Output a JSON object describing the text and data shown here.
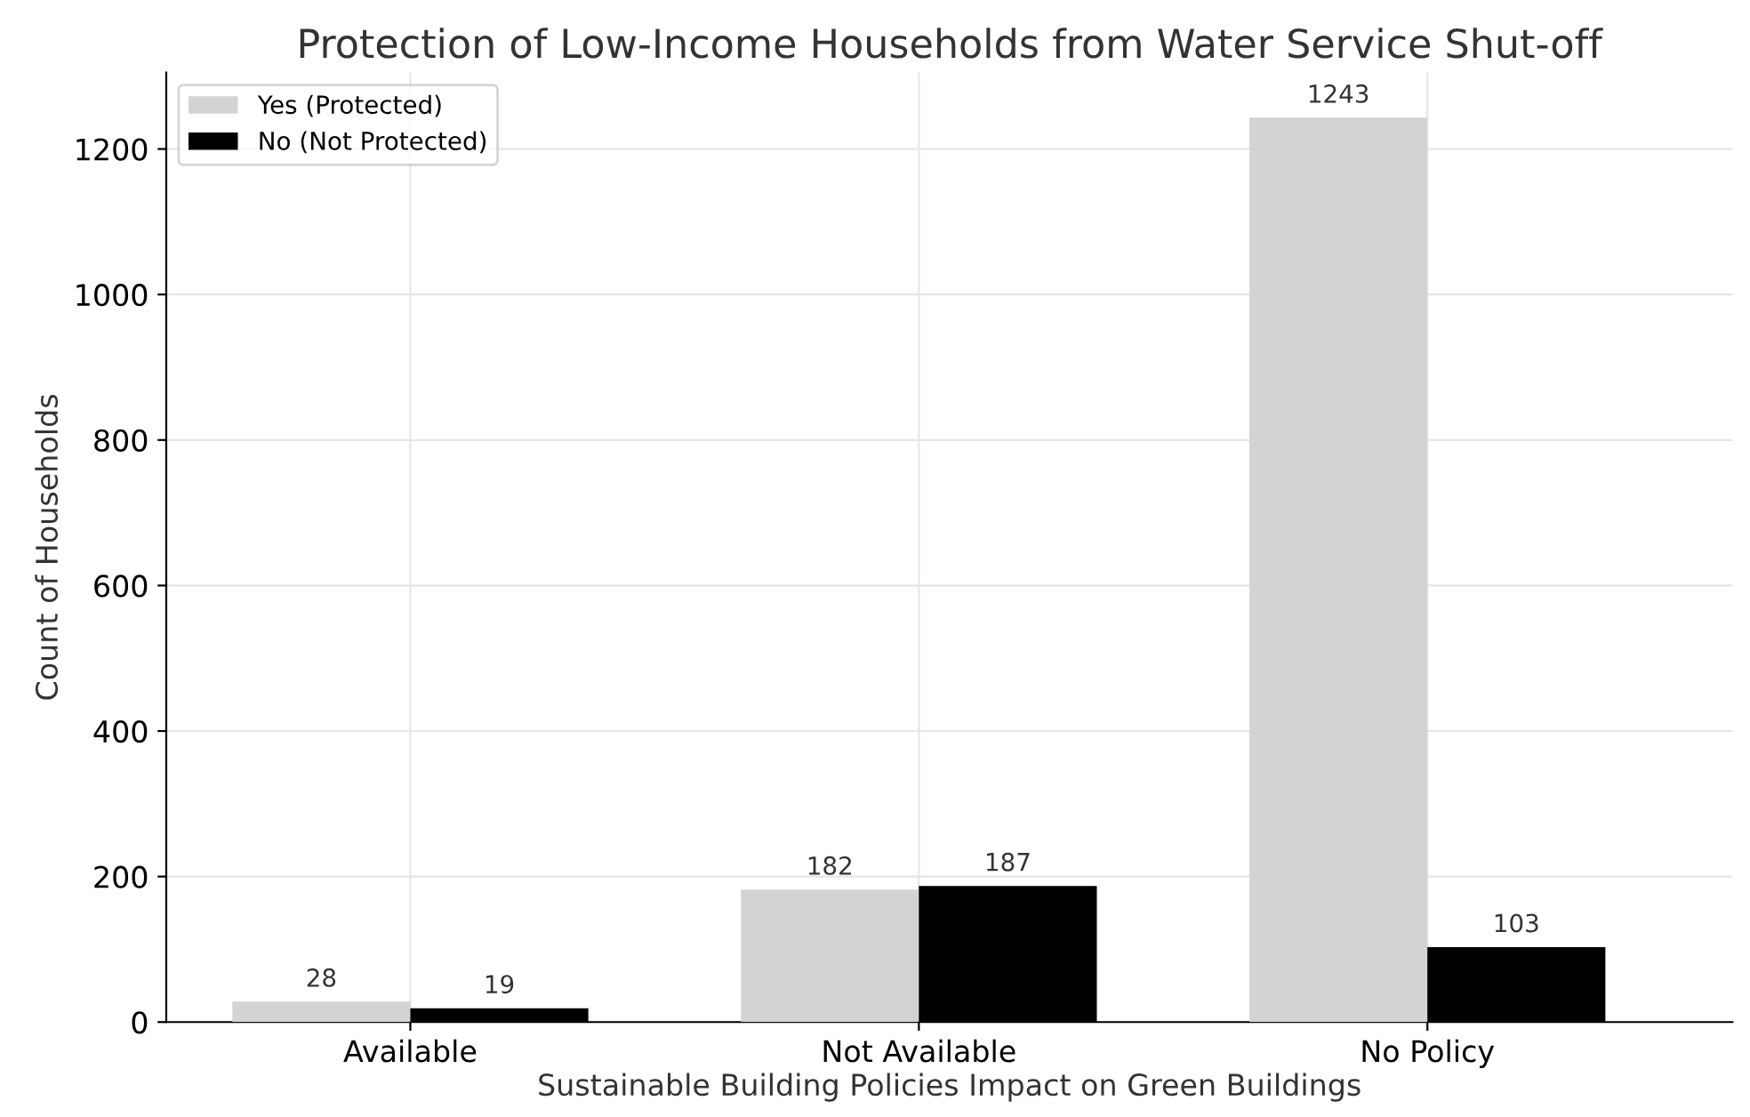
{
  "chart_data": {
    "type": "bar",
    "title": "Protection of Low-Income Households from Water Service Shut-off",
    "xlabel": "Sustainable Building Policies Impact on Green Buildings",
    "ylabel": "Count of Households",
    "categories": [
      "Available",
      "Not Available",
      "No Policy"
    ],
    "series": [
      {
        "name": "Yes (Protected)",
        "color": "#d3d3d3",
        "values": [
          28,
          182,
          1243
        ]
      },
      {
        "name": "No (Not Protected)",
        "color": "#000000",
        "values": [
          19,
          187,
          103
        ]
      }
    ],
    "ylim": [
      0,
      1305
    ],
    "yticks": [
      0,
      200,
      400,
      600,
      800,
      1000,
      1200
    ],
    "grid": true,
    "legend": "top left",
    "data_labels": true
  }
}
